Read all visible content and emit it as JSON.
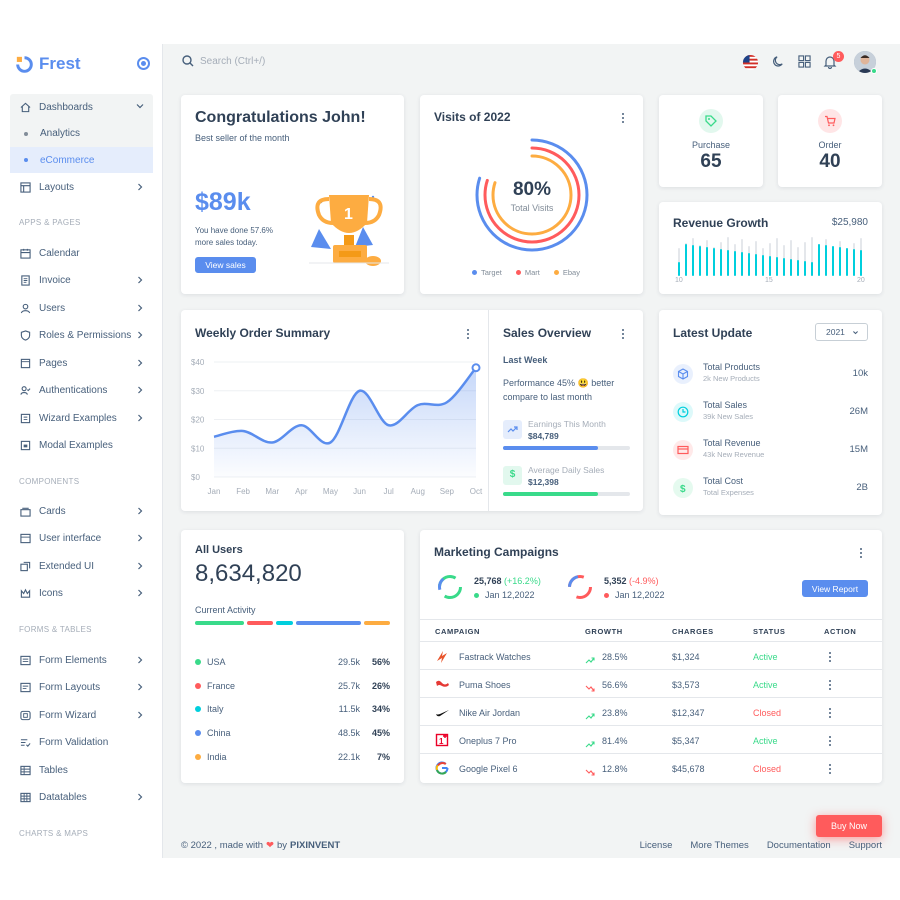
{
  "brand": {
    "name": "Frest"
  },
  "sidebar": {
    "dashboards": "Dashboards",
    "analytics": "Analytics",
    "ecommerce": "eCommerce",
    "layouts": "Layouts",
    "h_apps": "APPS & PAGES",
    "calendar": "Calendar",
    "invoice": "Invoice",
    "users": "Users",
    "roles": "Roles & Permissions",
    "pages": "Pages",
    "auth": "Authentications",
    "wizard": "Wizard Examples",
    "modal": "Modal Examples",
    "h_components": "COMPONENTS",
    "cards": "Cards",
    "ui": "User interface",
    "extended": "Extended UI",
    "icons": "Icons",
    "h_forms": "FORMS & TABLES",
    "form_elements": "Form Elements",
    "form_layouts": "Form Layouts",
    "form_wizard": "Form Wizard",
    "form_validation": "Form Validation",
    "tables": "Tables",
    "datatables": "Datatables",
    "h_charts": "CHARTS & MAPS"
  },
  "topbar": {
    "search_placeholder": "Search (Ctrl+/)",
    "notifications": "5"
  },
  "congrats": {
    "title": "Congratulations John!",
    "subtitle": "Best seller of the month",
    "amount": "$89k",
    "line1": "You have done 57.6%",
    "line2": "more sales today.",
    "button": "View sales"
  },
  "visits": {
    "title": "Visits of 2022",
    "percent": "80%",
    "label": "Total Visits",
    "legend": [
      "Target",
      "Mart",
      "Ebay"
    ]
  },
  "purchase": {
    "label": "Purchase",
    "value": "65"
  },
  "order": {
    "label": "Order",
    "value": "40"
  },
  "revenue_growth": {
    "title": "Revenue Growth",
    "amount": "$25,980",
    "x_ticks": [
      "10",
      "15",
      "20"
    ]
  },
  "weekly": {
    "title": "Weekly Order Summary"
  },
  "chart_data": {
    "type": "line",
    "categories": [
      "Jan",
      "Feb",
      "Mar",
      "Apr",
      "May",
      "Jun",
      "Jul",
      "Aug",
      "Sep",
      "Oct"
    ],
    "values": [
      14,
      16,
      12,
      18,
      12,
      30,
      18,
      25,
      26,
      38
    ],
    "title": "",
    "xlabel": "",
    "ylabel": "",
    "ylim": [
      0,
      40
    ],
    "y_ticks": [
      "$0",
      "$10",
      "$20",
      "$30",
      "$40"
    ],
    "grid": true
  },
  "sales_overview": {
    "title": "Sales Overview",
    "period": "Last Week",
    "text1": "Performance 45% 😃 better",
    "text2": "compare to last month",
    "m1_label": "Earnings This Month",
    "m1_value": "$84,789",
    "m1_progress": 0.75,
    "m2_label": "Average Daily Sales",
    "m2_value": "$12,398",
    "m2_progress": 0.75
  },
  "latest": {
    "title": "Latest Update",
    "year": "2021",
    "items": [
      {
        "title": "Total Products",
        "sub": "2k New Products",
        "value": "10k",
        "color": "#5a8dee",
        "icon": "cube-icon"
      },
      {
        "title": "Total Sales",
        "sub": "39k New Sales",
        "value": "26M",
        "color": "#00cfdd",
        "icon": "clock-icon"
      },
      {
        "title": "Total Revenue",
        "sub": "43k New Revenue",
        "value": "15M",
        "color": "#ff5b5c",
        "icon": "credit-card-icon"
      },
      {
        "title": "Total Cost",
        "sub": "Total Expenses",
        "value": "2B",
        "color": "#39da8a",
        "icon": "dollar-icon"
      }
    ]
  },
  "all_users": {
    "title": "All Users",
    "total": "8,634,820",
    "activity": "Current Activity",
    "rows": [
      {
        "country": "USA",
        "count": "29.5k",
        "pct": "56%",
        "color": "#39da8a"
      },
      {
        "country": "France",
        "count": "25.7k",
        "pct": "26%",
        "color": "#ff5b5c"
      },
      {
        "country": "Italy",
        "count": "11.5k",
        "pct": "34%",
        "color": "#00cfdd"
      },
      {
        "country": "China",
        "count": "48.5k",
        "pct": "45%",
        "color": "#5a8dee"
      },
      {
        "country": "India",
        "count": "22.1k",
        "pct": "7%",
        "color": "#fdac41"
      }
    ]
  },
  "marketing": {
    "title": "Marketing Campaigns",
    "s1_value": "25,768",
    "s1_change": "(+16.2%)",
    "s1_date": "Jan 12,2022",
    "s2_value": "5,352",
    "s2_change": "(-4.9%)",
    "s2_date": "Jan 12,2022",
    "button": "View Report",
    "headers": [
      "CAMPAIGN",
      "GROWTH",
      "CHARGES",
      "STATUS",
      "ACTION"
    ],
    "rows": [
      {
        "campaign": "Fastrack Watches",
        "growth": "28.5%",
        "up": true,
        "charges": "$1,324",
        "status": "Active",
        "icon": "fastrack-logo-icon"
      },
      {
        "campaign": "Puma Shoes",
        "growth": "56.6%",
        "up": false,
        "charges": "$3,573",
        "status": "Active",
        "icon": "puma-logo-icon"
      },
      {
        "campaign": "Nike Air Jordan",
        "growth": "23.8%",
        "up": true,
        "charges": "$12,347",
        "status": "Closed",
        "icon": "nike-logo-icon"
      },
      {
        "campaign": "Oneplus 7 Pro",
        "growth": "81.4%",
        "up": true,
        "charges": "$5,347",
        "status": "Active",
        "icon": "oneplus-logo-icon"
      },
      {
        "campaign": "Google Pixel 6",
        "growth": "12.8%",
        "up": false,
        "charges": "$45,678",
        "status": "Closed",
        "icon": "google-logo-icon"
      }
    ]
  },
  "buy_now": "Buy Now",
  "footer": {
    "copyright": "© 2022 , made with",
    "by": "by",
    "brand": "PIXINVENT",
    "links": [
      "License",
      "More Themes",
      "Documentation",
      "Support"
    ]
  }
}
